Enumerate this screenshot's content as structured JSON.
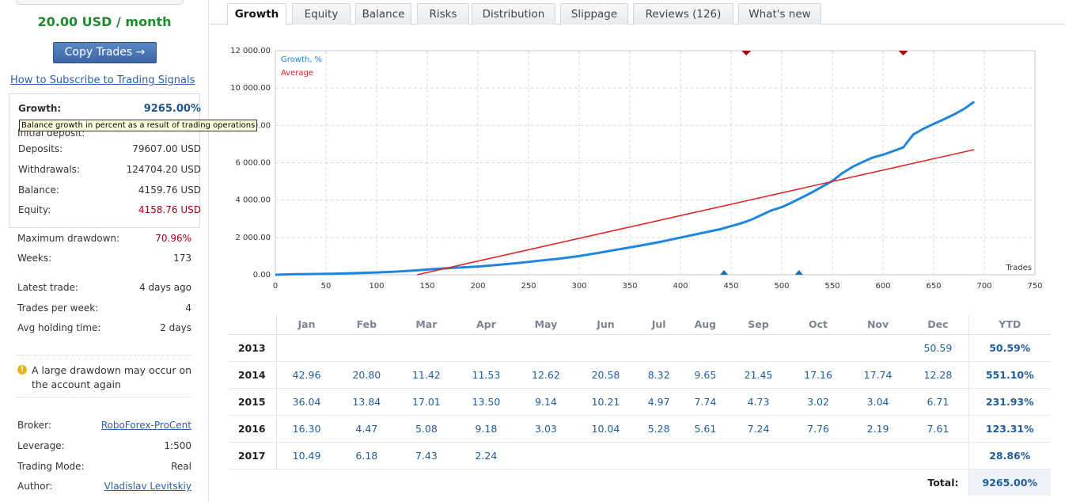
{
  "sidebar": {
    "price": "20.00 USD / month",
    "copy_button": "Copy Trades →",
    "howto_link": "How to Subscribe to Trading Signals",
    "tooltip": "Balance growth in percent as a result of trading operations",
    "tooltip_underlying": "Initial deposit:",
    "growth": {
      "label": "Growth:",
      "value": "9265.00%"
    },
    "deposits": {
      "label": "Deposits:",
      "value": "79607.00 USD"
    },
    "withdrawals": {
      "label": "Withdrawals:",
      "value": "124704.20 USD"
    },
    "balance": {
      "label": "Balance:",
      "value": "4159.76 USD"
    },
    "equity": {
      "label": "Equity:",
      "value": "4158.76 USD"
    },
    "max_drawdown": {
      "label": "Maximum drawdown:",
      "value": "70.96%"
    },
    "weeks": {
      "label": "Weeks:",
      "value": "173"
    },
    "latest_trade": {
      "label": "Latest trade:",
      "value": "4 days ago"
    },
    "trades_per_week": {
      "label": "Trades per week:",
      "value": "4"
    },
    "avg_holding": {
      "label": "Avg holding time:",
      "value": "2 days"
    },
    "warning": "A large drawdown may occur on the account again",
    "broker": {
      "label": "Broker:",
      "value": "RoboForex-ProCent"
    },
    "leverage": {
      "label": "Leverage:",
      "value": "1:500"
    },
    "trading_mode": {
      "label": "Trading Mode:",
      "value": "Real"
    },
    "author": {
      "label": "Author:",
      "value": "Vladislav Levitskiy"
    }
  },
  "tabs": [
    {
      "label": "Growth",
      "active": true
    },
    {
      "label": "Equity"
    },
    {
      "label": "Balance"
    },
    {
      "label": "Risks"
    },
    {
      "label": "Distribution"
    },
    {
      "label": "Slippage"
    },
    {
      "label": "Reviews (126)"
    },
    {
      "label": "What's new"
    }
  ],
  "colors": {
    "growth_line": "#1f86e0",
    "average_line": "#e02424",
    "accent_green": "#1c8c2e",
    "link_blue": "#2b60a7"
  },
  "chart_data": {
    "type": "line",
    "xlabel": "Trades",
    "ylabel": "",
    "xlim": [
      0,
      750
    ],
    "ylim": [
      0,
      12000
    ],
    "x_ticks": [
      0,
      50,
      100,
      150,
      200,
      250,
      300,
      350,
      400,
      450,
      500,
      550,
      600,
      650,
      700,
      750
    ],
    "y_ticks": [
      0,
      2000,
      4000,
      6000,
      8000,
      10000,
      12000
    ],
    "y_tick_labels": [
      "0.00",
      "2 000.00",
      "4 000.00",
      "6 000.00",
      "8 000.00",
      "10 000.00",
      "12 000.00"
    ],
    "grid": true,
    "legend": "top-left",
    "series": [
      {
        "name": "Growth, %",
        "x": [
          0,
          20,
          40,
          60,
          80,
          100,
          120,
          140,
          160,
          180,
          200,
          220,
          240,
          260,
          280,
          300,
          320,
          340,
          360,
          380,
          400,
          420,
          440,
          460,
          470,
          480,
          490,
          500,
          510,
          520,
          530,
          540,
          550,
          560,
          570,
          580,
          590,
          600,
          610,
          620,
          630,
          640,
          650,
          660,
          670,
          680,
          690
        ],
        "y": [
          0,
          30,
          40,
          60,
          90,
          120,
          170,
          240,
          320,
          380,
          440,
          530,
          630,
          750,
          860,
          1000,
          1180,
          1370,
          1560,
          1760,
          1990,
          2220,
          2450,
          2760,
          2950,
          3200,
          3450,
          3620,
          3870,
          4140,
          4420,
          4720,
          5020,
          5450,
          5780,
          6040,
          6280,
          6430,
          6620,
          6820,
          7520,
          7820,
          8080,
          8320,
          8580,
          8880,
          9265
        ]
      },
      {
        "name": "Average",
        "x": [
          140,
          690
        ],
        "y": [
          0,
          6700
        ]
      }
    ],
    "markers_top": [
      465,
      620
    ],
    "markers_bottom": [
      443,
      517
    ]
  },
  "table": {
    "headers": [
      "Jan",
      "Feb",
      "Mar",
      "Apr",
      "May",
      "Jun",
      "Jul",
      "Aug",
      "Sep",
      "Oct",
      "Nov",
      "Dec",
      "YTD"
    ],
    "rows": [
      {
        "year": "2013",
        "values": [
          "",
          "",
          "",
          "",
          "",
          "",
          "",
          "",
          "",
          "",
          "",
          "50.59"
        ],
        "ytd": "50.59%"
      },
      {
        "year": "2014",
        "values": [
          "42.96",
          "20.80",
          "11.42",
          "11.53",
          "12.62",
          "20.58",
          "8.32",
          "9.65",
          "21.45",
          "17.16",
          "17.74",
          "12.28"
        ],
        "ytd": "551.10%"
      },
      {
        "year": "2015",
        "values": [
          "36.04",
          "13.84",
          "17.01",
          "13.50",
          "9.14",
          "10.21",
          "4.97",
          "7.74",
          "4.73",
          "3.02",
          "3.04",
          "6.71"
        ],
        "ytd": "231.93%"
      },
      {
        "year": "2016",
        "values": [
          "16.30",
          "4.47",
          "5.08",
          "9.18",
          "3.03",
          "10.04",
          "5.28",
          "5.61",
          "7.24",
          "7.76",
          "2.19",
          "7.61"
        ],
        "ytd": "123.31%"
      },
      {
        "year": "2017",
        "values": [
          "10.49",
          "6.18",
          "7.43",
          "2.24",
          "",
          "",
          "",
          "",
          "",
          "",
          "",
          ""
        ],
        "ytd": "28.86%"
      }
    ],
    "total_label": "Total:",
    "total_value": "9265.00%"
  }
}
